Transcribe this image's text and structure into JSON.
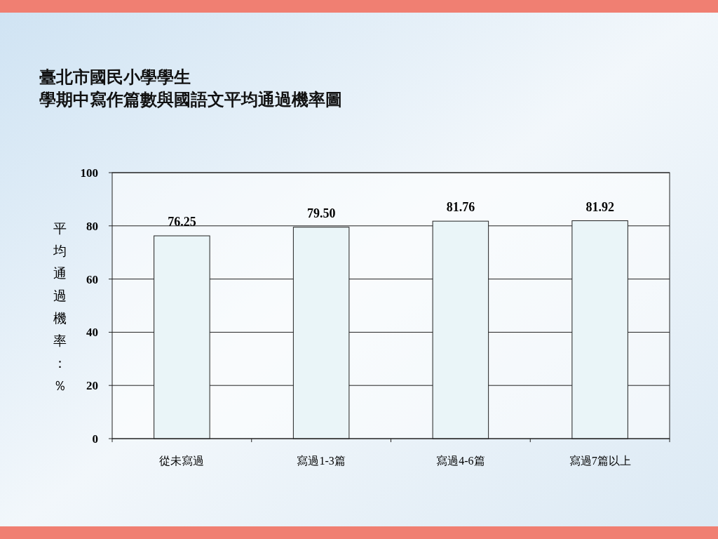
{
  "chart_data": {
    "type": "bar",
    "title": "臺北市國民小學學生",
    "subtitle": "學期中寫作篇數與國語文平均通過機率圖",
    "ylabel": "平均通過機率：％",
    "categories": [
      "從未寫過",
      "寫過1-3篇",
      "寫過4-6篇",
      "寫過7篇以上"
    ],
    "values": [
      76.25,
      79.5,
      81.76,
      81.92
    ],
    "value_labels": [
      "76.25",
      "79.50",
      "81.76",
      "81.92"
    ],
    "color": "#eaf5f8",
    "ylim": [
      0,
      100
    ],
    "yticks": [
      0,
      20,
      40,
      60,
      80,
      100
    ],
    "grid": "y"
  }
}
